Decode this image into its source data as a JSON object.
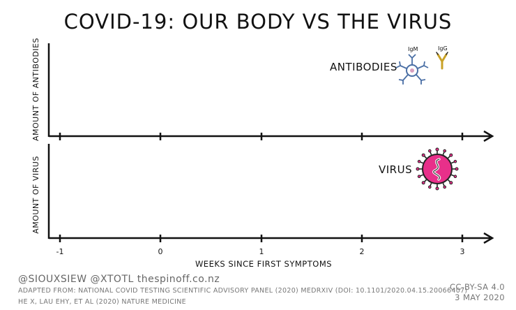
{
  "title": "COVID-19: OUR BODY VS THE VIRUS",
  "panels": {
    "top": {
      "ylabel": "AMOUNT OF ANTIBODIES",
      "label": "ANTIBODIES",
      "igm_label": "IgM",
      "igg_label": "IgG"
    },
    "bottom": {
      "ylabel": "AMOUNT OF VIRUS",
      "label": "VIRUS"
    }
  },
  "x_axis": {
    "label": "WEEKS SINCE FIRST SYMPTOMS",
    "ticks": [
      "-1",
      "0",
      "1",
      "2",
      "3"
    ]
  },
  "colors": {
    "ink": "#111111",
    "virus_fill": "#e8308a",
    "virus_outline": "#222222",
    "igg_color": "#c9a227",
    "igm_color": "#4a6fa5"
  },
  "credits": {
    "handles": "@SIOUXSIEW @XTOTL thespinoff.co.nz",
    "source1": "ADAPTED FROM: NATIONAL COVID TESTING SCIENTIFIC ADVISORY PANEL (2020) MEDRXIV (DOI: 10.1101/2020.04.15.20066407)",
    "source2": "HE X, LAU EHY, ET AL (2020) NATURE MEDICINE",
    "license": "CC-BY-SA 4.0",
    "date": "3 MAY 2020"
  }
}
